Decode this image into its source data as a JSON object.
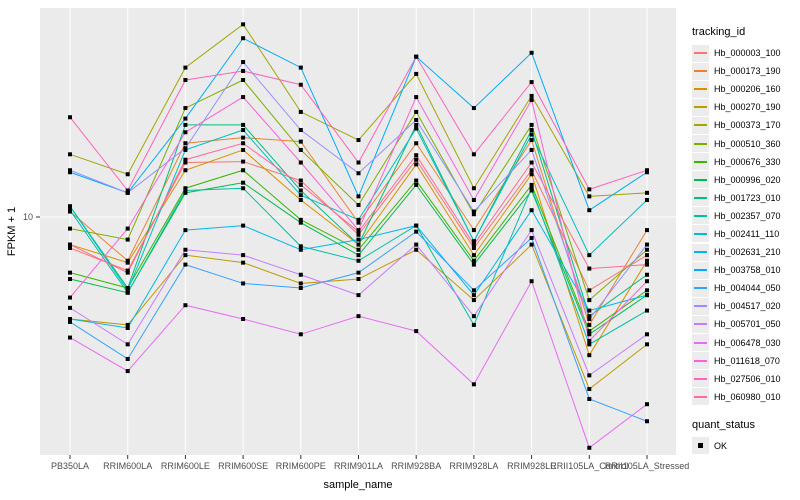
{
  "axes": {
    "x_title": "sample_name",
    "y_title": "FPKM + 1",
    "y_tick_labels": [
      "10"
    ]
  },
  "legend": {
    "tracking_title": "tracking_id",
    "quant_title": "quant_status",
    "quant_items": [
      {
        "label": "OK",
        "marker": "black-square"
      }
    ]
  },
  "colors": {
    "panel_bg": "#EBEBEB",
    "grid": "#FFFFFF",
    "axis_text": "#4D4D4D",
    "axis_title": "#000000",
    "tick_mark": "#333333",
    "point": "#000000",
    "legend_key_bg": "#ECECEC"
  },
  "chart_data": {
    "type": "line",
    "title": "",
    "xlabel": "sample_name",
    "ylabel": "FPKM + 1",
    "y_scale": "log10",
    "y_ticks": [
      10
    ],
    "ylim": [
      1.8,
      45
    ],
    "grid": "vertical-major-plus-y10",
    "legend_position": "right",
    "point_shape": "black-square",
    "quant_status": "OK",
    "x": [
      "PB350LA",
      "RRIM600LA",
      "RRIM600LE",
      "RRIM600SE",
      "RRIM600PE",
      "RRIM901LA",
      "RRIM928BA",
      "RRIM928LA",
      "RRIM928LE",
      "RRII105LA_Control",
      "RRII105LA_Stressed"
    ],
    "series": [
      {
        "name": "Hb_000003_100",
        "color": "#F8766D",
        "values": [
          8.0,
          6.8,
          14.8,
          14.9,
          13.0,
          8.8,
          15.1,
          8.0,
          14.0,
          5.9,
          7.6
        ]
      },
      {
        "name": "Hb_000173_190",
        "color": "#EA8331",
        "values": [
          10.4,
          7.3,
          17.0,
          17.7,
          17.2,
          9.6,
          17.0,
          9.1,
          17.4,
          4.6,
          9.1
        ]
      },
      {
        "name": "Hb_000206_160",
        "color": "#D89000",
        "values": [
          8.2,
          7.2,
          14.0,
          16.2,
          11.3,
          8.2,
          14.6,
          7.6,
          13.6,
          3.7,
          7.3
        ]
      },
      {
        "name": "Hb_000270_190",
        "color": "#C09B00",
        "values": [
          4.8,
          4.6,
          7.6,
          7.2,
          6.2,
          6.4,
          7.9,
          5.5,
          8.2,
          2.9,
          4.0
        ]
      },
      {
        "name": "Hb_000373_170",
        "color": "#A3A500",
        "values": [
          15.7,
          13.6,
          29.3,
          40.0,
          21.3,
          17.4,
          28.0,
          12.3,
          23.9,
          11.6,
          11.9
        ]
      },
      {
        "name": "Hb_000510_360",
        "color": "#7CAE00",
        "values": [
          9.2,
          8.5,
          21.9,
          26.8,
          16.2,
          10.9,
          21.3,
          10.2,
          19.4,
          5.5,
          7.9
        ]
      },
      {
        "name": "Hb_000676_330",
        "color": "#39B600",
        "values": [
          6.7,
          6.0,
          12.3,
          14.0,
          9.8,
          7.9,
          13.0,
          7.3,
          12.6,
          4.4,
          5.9
        ]
      },
      {
        "name": "Hb_000996_020",
        "color": "#00BB4E",
        "values": [
          6.4,
          5.8,
          11.9,
          12.8,
          9.6,
          7.6,
          12.6,
          7.1,
          12.1,
          4.3,
          5.7
        ]
      },
      {
        "name": "Hb_001723_010",
        "color": "#00BF7D",
        "values": [
          10.8,
          6.0,
          19.4,
          19.4,
          12.1,
          8.2,
          19.4,
          8.4,
          18.7,
          4.9,
          6.6
        ]
      },
      {
        "name": "Hb_002357_070",
        "color": "#00C1A3",
        "values": [
          10.5,
          5.8,
          12.1,
          12.3,
          8.1,
          7.3,
          9.4,
          4.6,
          12.3,
          4.0,
          5.1
        ]
      },
      {
        "name": "Hb_002411_110",
        "color": "#00BFC4",
        "values": [
          10.8,
          5.9,
          16.2,
          18.7,
          11.7,
          9.8,
          18.9,
          8.4,
          18.1,
          7.6,
          11.3
        ]
      },
      {
        "name": "Hb_002631_210",
        "color": "#00B8E7",
        "values": [
          4.8,
          4.5,
          9.1,
          9.4,
          7.9,
          8.5,
          9.4,
          5.7,
          10.5,
          5.1,
          5.7
        ]
      },
      {
        "name": "Hb_003758_010",
        "color": "#00ACFC",
        "values": [
          13.8,
          11.9,
          20.3,
          36.2,
          29.3,
          11.6,
          31.7,
          21.9,
          32.6,
          10.5,
          13.8
        ]
      },
      {
        "name": "Hb_004044_050",
        "color": "#35A2FF",
        "values": [
          4.7,
          3.6,
          7.1,
          6.2,
          6.0,
          6.7,
          9.0,
          5.9,
          8.6,
          2.7,
          2.3
        ]
      },
      {
        "name": "Hb_004517_020",
        "color": "#9590FF",
        "values": [
          14.0,
          11.9,
          16.4,
          30.5,
          18.7,
          13.7,
          20.1,
          10.4,
          16.2,
          4.8,
          8.2
        ]
      },
      {
        "name": "Hb_005701_050",
        "color": "#C77CFF",
        "values": [
          5.2,
          4.0,
          7.9,
          7.6,
          6.6,
          5.7,
          8.2,
          4.9,
          9.1,
          3.2,
          4.3
        ]
      },
      {
        "name": "Hb_006478_030",
        "color": "#E76BF3",
        "values": [
          4.2,
          3.3,
          5.3,
          4.8,
          4.3,
          4.9,
          4.4,
          3.0,
          6.3,
          1.9,
          2.6
        ]
      },
      {
        "name": "Hb_011618_070",
        "color": "#FA62DB",
        "values": [
          5.6,
          9.2,
          18.4,
          23.7,
          14.8,
          9.1,
          23.7,
          11.3,
          23.2,
          4.1,
          6.3
        ]
      },
      {
        "name": "Hb_027506_010",
        "color": "#FF62BC",
        "values": [
          20.5,
          12.1,
          26.8,
          28.6,
          25.9,
          14.8,
          31.7,
          15.7,
          26.4,
          12.2,
          14.0
        ]
      },
      {
        "name": "Hb_060980_010",
        "color": "#FF6A98",
        "values": [
          8.2,
          6.7,
          15.1,
          17.0,
          12.6,
          9.0,
          15.6,
          8.2,
          14.8,
          6.9,
          7.1
        ]
      }
    ]
  }
}
